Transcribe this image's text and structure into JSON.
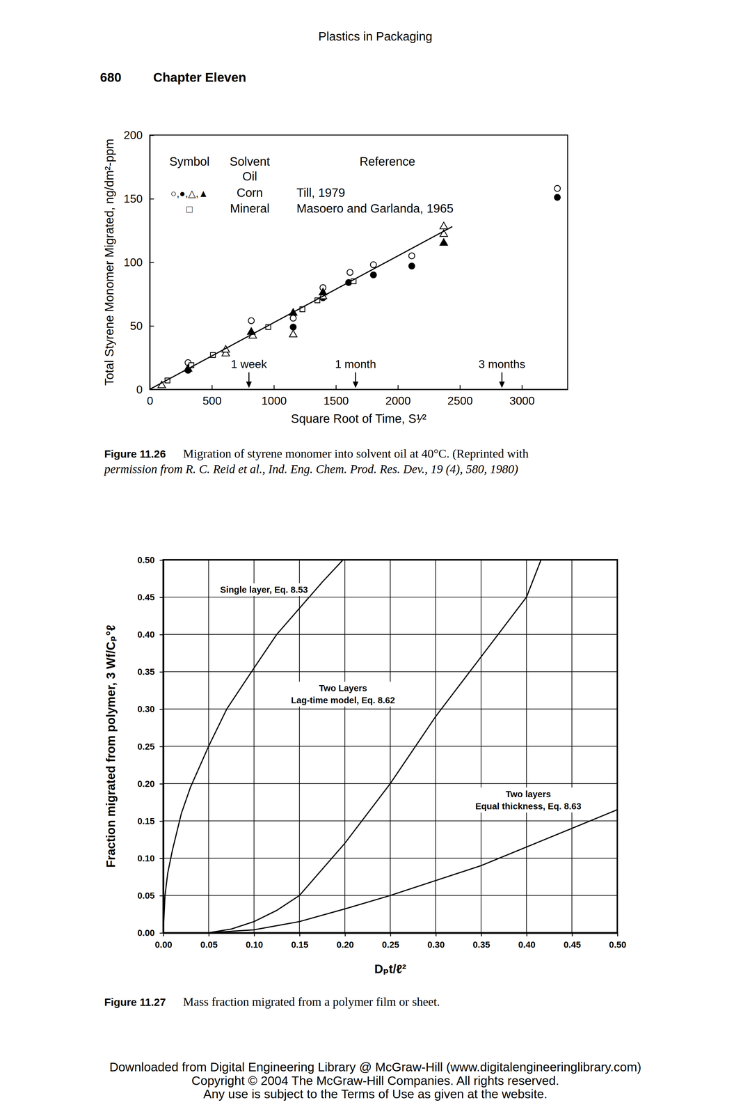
{
  "page": {
    "running_head": "Plastics in Packaging",
    "page_number": "680",
    "chapter": "Chapter Eleven",
    "footer": [
      "Downloaded from Digital Engineering Library @ McGraw-Hill (www.digitalengineeringlibrary.com)",
      "Copyright © 2004 The McGraw-Hill Companies. All rights reserved.",
      "Any use is subject to the Terms of Use as given at the website."
    ]
  },
  "chart_data": [
    {
      "type": "scatter",
      "x_label": "Square Root of Time, S¹⁄²",
      "y_label": "Total Styrene Monomer Migrated, ng/dm²-ppm",
      "xlim": [
        0,
        3370
      ],
      "ylim": [
        0,
        200
      ],
      "xticks": [
        0,
        500,
        1000,
        1500,
        2000,
        2500,
        3000
      ],
      "yticks": [
        0,
        50,
        100,
        150,
        200
      ],
      "grid": false,
      "legend_table": {
        "headers": [
          [
            "Symbol"
          ],
          [
            "Solvent",
            "Oil"
          ],
          [
            "Reference"
          ]
        ],
        "rows": [
          [
            "○,●,△,▲",
            "Corn",
            "Till, 1979"
          ],
          [
            "□",
            "Mineral",
            "Masoero and Garlanda, 1965"
          ]
        ]
      },
      "annotations": [
        {
          "text": "1 week",
          "x": 800
        },
        {
          "text": "1 month",
          "x": 1660
        },
        {
          "text": "3 months",
          "x": 2840
        }
      ],
      "series": [
        {
          "marker": "circle-open",
          "color": "#000000",
          "x": [
            309,
            819,
            1157,
            1397,
            1615,
            1804,
            2113,
            3287
          ],
          "values": [
            21,
            54,
            56,
            80,
            92,
            98,
            105,
            158
          ]
        },
        {
          "marker": "circle",
          "color": "#000000",
          "x": [
            309,
            1157,
            1397,
            1604,
            1804,
            2113,
            3287
          ],
          "values": [
            15,
            49,
            72,
            84,
            90,
            97,
            151
          ]
        },
        {
          "marker": "triangle-open",
          "color": "#000000",
          "x": [
            97,
            309,
            613,
            613,
            831,
            1157,
            1397,
            2371,
            2371
          ],
          "values": [
            3,
            16,
            28,
            31,
            42,
            43,
            73,
            128,
            122
          ]
        },
        {
          "marker": "triangle",
          "color": "#000000",
          "x": [
            309,
            819,
            1157,
            1397,
            2371
          ],
          "values": [
            16,
            45,
            60,
            76,
            115
          ]
        },
        {
          "marker": "square-open",
          "color": "#000000",
          "x": [
            143,
            336,
            510,
            956,
            1231,
            1352,
            1644
          ],
          "values": [
            7,
            19,
            27,
            49,
            63,
            70,
            85
          ]
        },
        {
          "type": "line",
          "line_style": "solid",
          "color": "#000000",
          "x": [
            0,
            2440
          ],
          "values": [
            0,
            128
          ]
        }
      ],
      "caption": {
        "label": "Figure 11.26",
        "lines": [
          "Migration of styrene monomer into solvent oil at 40°C. (Reprinted with",
          "permission from R. C. Reid et al., Ind. Eng. Chem. Prod. Res. Dev., 19 (4), 580, 1980)"
        ]
      }
    },
    {
      "type": "line",
      "x_label": "Dₚt/ℓ²",
      "y_label": "Fraction migrated from polymer, 3 Wf/Cₚ°ℓ",
      "xlim": [
        0,
        0.5
      ],
      "ylim": [
        0,
        0.5
      ],
      "xticks": [
        {
          "value": 0,
          "label": "0.00"
        },
        0.05,
        {
          "value": 0.1,
          "label": "0.10"
        },
        0.15,
        {
          "value": 0.2,
          "label": "0.20"
        },
        0.25,
        {
          "value": 0.3,
          "label": "0.30"
        },
        0.35,
        {
          "value": 0.4,
          "label": "0.40"
        },
        0.45,
        {
          "value": 0.5,
          "label": "0.50"
        }
      ],
      "yticks": [
        {
          "value": 0,
          "label": "0.00"
        },
        0.05,
        {
          "value": 0.1,
          "label": "0.10"
        },
        0.15,
        {
          "value": 0.2,
          "label": "0.20"
        },
        0.25,
        {
          "value": 0.3,
          "label": "0.30"
        },
        0.35,
        {
          "value": 0.4,
          "label": "0.40"
        },
        0.45,
        {
          "value": 0.5,
          "label": "0.50"
        }
      ],
      "grid": true,
      "annotations": [
        {
          "lines": [
            "Single layer, Eq. 8.53"
          ],
          "x": 0.111,
          "y": 0.46
        },
        {
          "lines": [
            "Two Layers",
            "Lag-time model, Eq. 8.62"
          ],
          "x": 0.198,
          "y": 0.32
        },
        {
          "lines": [
            "Two layers",
            "Equal thickness, Eq. 8.63"
          ],
          "x": 0.402,
          "y": 0.178
        }
      ],
      "series": [
        {
          "color": "#000000",
          "line_style": "solid",
          "x": [
            0,
            0.002,
            0.005,
            0.01,
            0.02,
            0.03,
            0.05,
            0.07,
            0.1,
            0.125,
            0.15,
            0.175,
            0.198
          ],
          "values": [
            0,
            0.05,
            0.08,
            0.11,
            0.16,
            0.195,
            0.25,
            0.3,
            0.355,
            0.4,
            0.435,
            0.47,
            0.5
          ]
        },
        {
          "color": "#000000",
          "line_style": "solid",
          "x": [
            0.05,
            0.075,
            0.1,
            0.125,
            0.15,
            0.175,
            0.2,
            0.225,
            0.25,
            0.275,
            0.3,
            0.35,
            0.4,
            0.416
          ],
          "values": [
            0,
            0.005,
            0.015,
            0.03,
            0.05,
            0.085,
            0.12,
            0.16,
            0.2,
            0.245,
            0.29,
            0.37,
            0.45,
            0.5
          ]
        },
        {
          "color": "#000000",
          "line_style": "solid",
          "x": [
            0.05,
            0.1,
            0.15,
            0.2,
            0.25,
            0.3,
            0.35,
            0.4,
            0.45,
            0.5
          ],
          "values": [
            0,
            0.004,
            0.015,
            0.032,
            0.05,
            0.07,
            0.09,
            0.115,
            0.14,
            0.165
          ]
        }
      ],
      "caption": {
        "label": "Figure 11.27",
        "lines": [
          "Mass fraction migrated from a polymer film or sheet."
        ]
      }
    }
  ]
}
